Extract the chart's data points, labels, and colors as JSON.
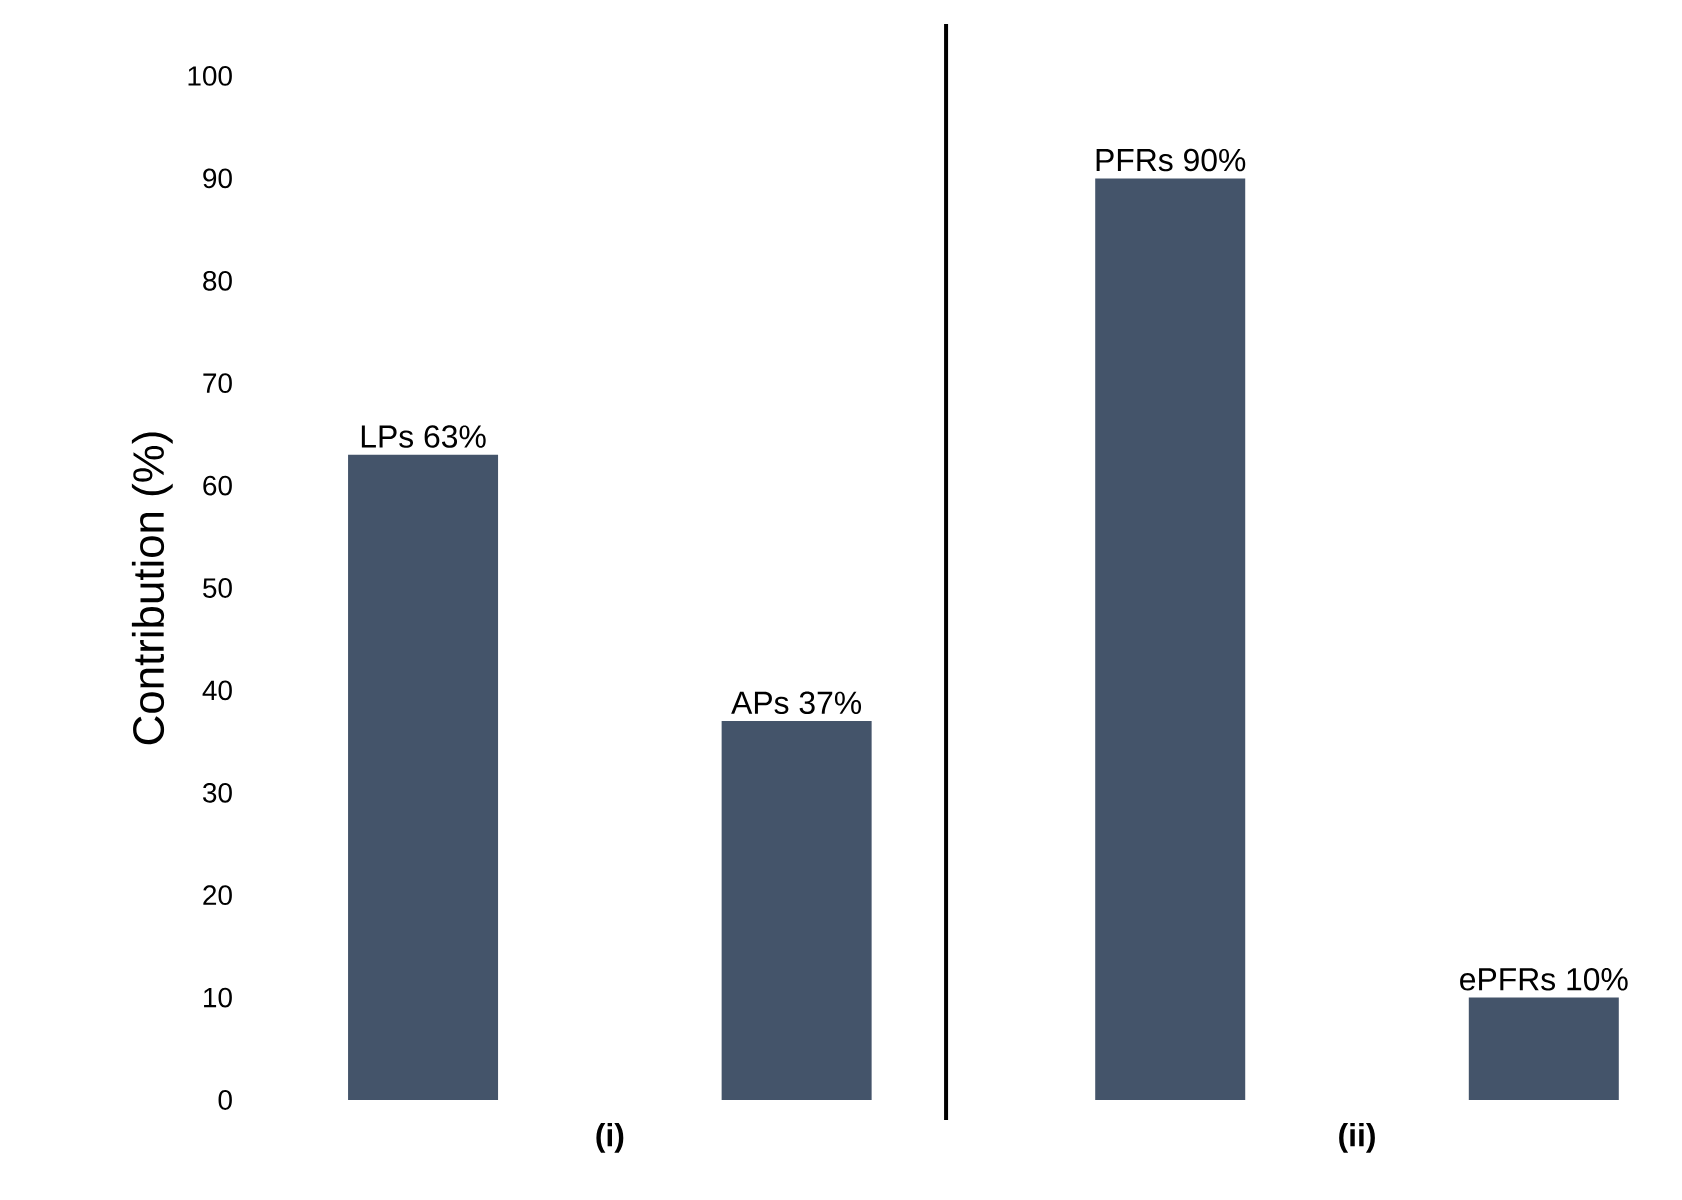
{
  "chart_data": {
    "type": "bar",
    "ylabel": "Contribution (%)",
    "categories": [
      null,
      null,
      null,
      null
    ],
    "values": [
      63,
      37,
      90,
      10
    ],
    "value_labels": [
      "LPs 63%",
      "APs 37%",
      "PFRs 90%",
      "ePFRs 10%"
    ],
    "color": "#44546a",
    "ylim": [
      0,
      100
    ],
    "yticks": [
      0,
      10,
      20,
      30,
      40,
      50,
      60,
      70,
      80,
      90,
      100
    ],
    "grid": false,
    "annotations": [
      "(i)",
      "(ii)"
    ]
  }
}
